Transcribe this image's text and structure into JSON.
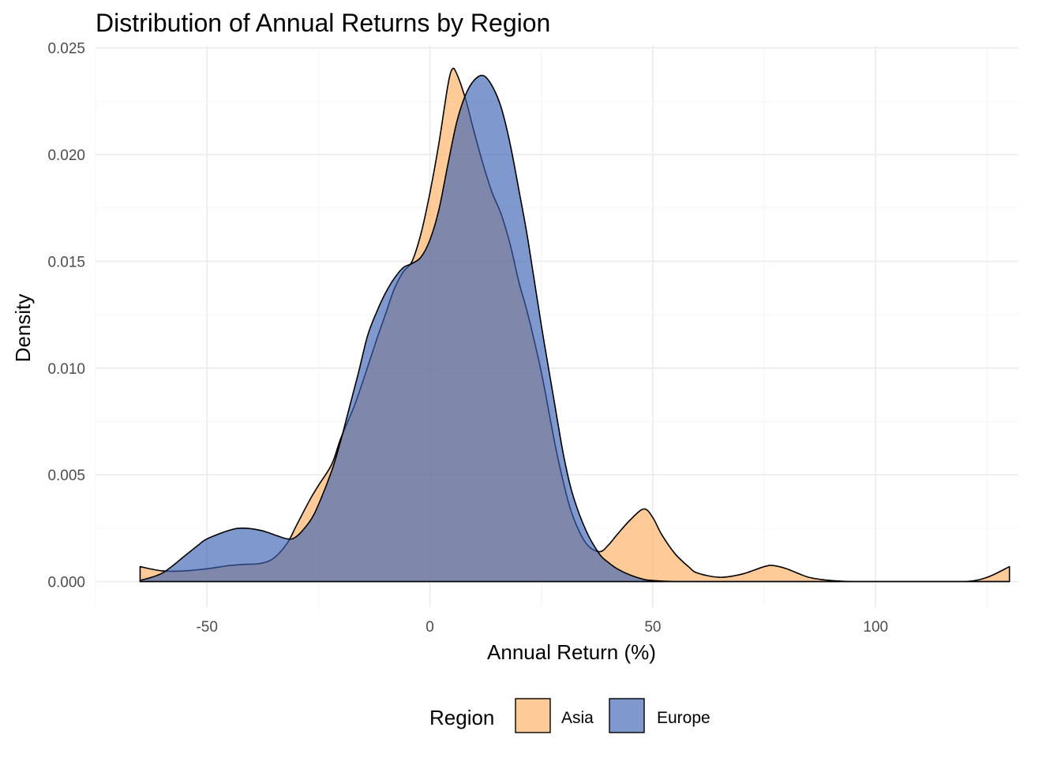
{
  "chart_data": {
    "type": "area",
    "subtype": "density",
    "title": "Distribution of Annual Returns by Region",
    "xlabel": "Annual Return (%)",
    "ylabel": "Density",
    "xlim": [
      -75,
      132
    ],
    "ylim": [
      -0.0012,
      0.0251
    ],
    "x_ticks": [
      -50,
      0,
      50,
      100
    ],
    "x_tick_labels": [
      "-50",
      "0",
      "50",
      "100"
    ],
    "x_minor_ticks": [
      -75,
      -25,
      25,
      75,
      125
    ],
    "y_ticks": [
      0.0,
      0.005,
      0.01,
      0.015,
      0.02,
      0.025
    ],
    "y_tick_labels": [
      "0.000",
      "0.005",
      "0.010",
      "0.015",
      "0.020",
      "0.025"
    ],
    "y_minor_ticks": [
      0.0025,
      0.0075,
      0.0125,
      0.0175,
      0.0225
    ],
    "grid": true,
    "legend": {
      "title": "Region",
      "position": "bottom"
    },
    "series": [
      {
        "name": "Asia",
        "color": "#fdae61",
        "opacity": 0.65,
        "x": [
          -65,
          -60,
          -55,
          -50,
          -45,
          -42,
          -38,
          -35,
          -32,
          -30,
          -27,
          -25,
          -22,
          -20,
          -17,
          -15,
          -12,
          -10,
          -8,
          -6,
          -4,
          -2,
          0,
          2,
          4,
          5,
          6,
          8,
          10,
          12,
          14,
          16,
          18,
          20,
          22,
          25,
          28,
          30,
          32,
          35,
          38,
          40,
          42,
          45,
          48,
          50,
          52,
          55,
          58,
          60,
          65,
          70,
          75,
          77,
          80,
          85,
          90,
          95,
          100,
          110,
          120,
          125,
          130
        ],
        "y": [
          0.0007,
          0.0005,
          0.0005,
          0.0006,
          0.00075,
          0.0008,
          0.00085,
          0.0011,
          0.0018,
          0.0026,
          0.0038,
          0.0045,
          0.0055,
          0.0067,
          0.0082,
          0.0094,
          0.0113,
          0.0125,
          0.0137,
          0.0145,
          0.015,
          0.0163,
          0.0182,
          0.0205,
          0.0232,
          0.024,
          0.0238,
          0.0226,
          0.021,
          0.0195,
          0.0182,
          0.0172,
          0.0158,
          0.014,
          0.0125,
          0.0098,
          0.0065,
          0.0046,
          0.0031,
          0.0018,
          0.0014,
          0.0017,
          0.0022,
          0.0029,
          0.0034,
          0.003,
          0.0022,
          0.0013,
          0.0007,
          0.0004,
          0.0002,
          0.00035,
          0.0007,
          0.00075,
          0.0006,
          0.0002,
          5e-05,
          0.0,
          0.0,
          0.0,
          0.0,
          0.0002,
          0.0007
        ]
      },
      {
        "name": "Europe",
        "color": "#3b62b5",
        "opacity": 0.65,
        "x": [
          -65,
          -60,
          -55,
          -52,
          -50,
          -45,
          -42,
          -38,
          -35,
          -32,
          -30,
          -27,
          -25,
          -22,
          -20,
          -18,
          -16,
          -14,
          -12,
          -10,
          -8,
          -6,
          -4,
          -2,
          0,
          2,
          4,
          6,
          8,
          10,
          12,
          14,
          16,
          18,
          20,
          22,
          25,
          28,
          30,
          32,
          35,
          38,
          40,
          42,
          45,
          48,
          50,
          55,
          60,
          70,
          80,
          90,
          100,
          110,
          120,
          130
        ],
        "y": [
          5e-05,
          0.0004,
          0.0012,
          0.0017,
          0.002,
          0.0024,
          0.0025,
          0.0024,
          0.0022,
          0.002,
          0.0021,
          0.0028,
          0.0036,
          0.0052,
          0.0066,
          0.0082,
          0.0098,
          0.0115,
          0.0126,
          0.0135,
          0.0142,
          0.0147,
          0.0149,
          0.0152,
          0.016,
          0.0174,
          0.0195,
          0.0215,
          0.0228,
          0.0235,
          0.0237,
          0.0232,
          0.0222,
          0.0205,
          0.0183,
          0.016,
          0.012,
          0.0083,
          0.0059,
          0.0041,
          0.0024,
          0.0013,
          0.0009,
          0.0006,
          0.0003,
          0.0001,
          5e-05,
          0.0,
          0.0,
          0.0,
          0.0,
          0.0,
          0.0,
          0.0,
          0.0,
          0.0
        ]
      }
    ]
  }
}
